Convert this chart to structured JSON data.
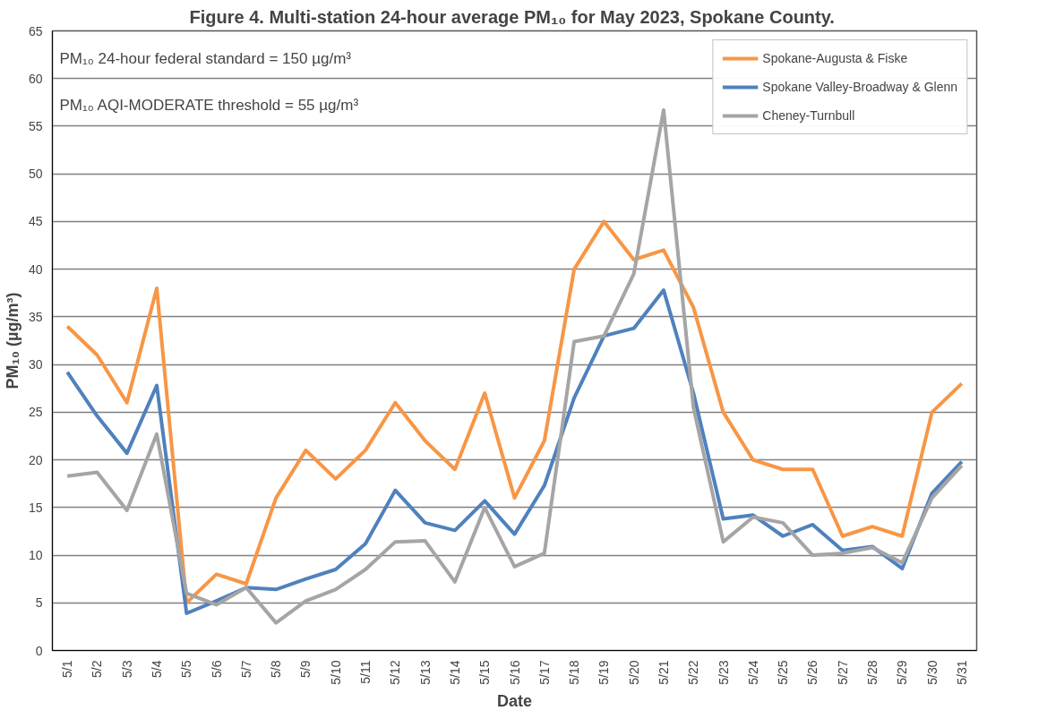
{
  "chart_data": {
    "type": "line",
    "title": "Figure 4.  Multi-station 24-hour average PM₁₀ for May 2023, Spokane County.",
    "xlabel": "Date",
    "ylabel": "PM₁₀ (µg/m³)",
    "categories": [
      "5/1",
      "5/2",
      "5/3",
      "5/4",
      "5/5",
      "5/6",
      "5/7",
      "5/8",
      "5/9",
      "5/10",
      "5/11",
      "5/12",
      "5/13",
      "5/14",
      "5/15",
      "5/16",
      "5/17",
      "5/18",
      "5/19",
      "5/20",
      "5/21",
      "5/22",
      "5/23",
      "5/24",
      "5/25",
      "5/26",
      "5/27",
      "5/28",
      "5/29",
      "5/30",
      "5/31"
    ],
    "series": [
      {
        "name": "Spokane-Augusta & Fiske",
        "color": "#f79646",
        "values": [
          34,
          31,
          26,
          38,
          5,
          8,
          7,
          16,
          21,
          18,
          21,
          26,
          22,
          19,
          27,
          16,
          22,
          40,
          45,
          41,
          42,
          36,
          25,
          20,
          19,
          19,
          12,
          13,
          12,
          25,
          28
        ]
      },
      {
        "name": "Spokane Valley-Broadway & Glenn",
        "color": "#4f81bd",
        "values": [
          29.2,
          24.6,
          20.7,
          27.8,
          3.9,
          5.2,
          6.6,
          6.4,
          7.5,
          8.5,
          11.2,
          16.8,
          13.4,
          12.6,
          15.7,
          12.2,
          17.3,
          26.5,
          33,
          33.8,
          37.8,
          27,
          13.8,
          14.2,
          12,
          13.2,
          10.5,
          10.9,
          8.6,
          16.5,
          19.8
        ]
      },
      {
        "name": "Cheney-Turnbull",
        "color": "#a5a5a5",
        "values": [
          18.3,
          18.7,
          14.7,
          22.7,
          6,
          4.8,
          6.6,
          2.9,
          5.2,
          6.4,
          8.5,
          11.4,
          11.5,
          7.2,
          15,
          8.8,
          10.2,
          32.4,
          33,
          39.5,
          56.7,
          25.5,
          11.4,
          14,
          13.4,
          10,
          10.2,
          10.8,
          9.2,
          16,
          19.4
        ]
      }
    ],
    "annotations": [
      "PM₁₀ 24-hour federal standard = 150 µg/m³",
      "PM₁₀ AQI-MODERATE threshold = 55 µg/m³"
    ],
    "ylim": [
      0,
      65
    ],
    "yticks": [
      0,
      5,
      10,
      15,
      20,
      25,
      30,
      35,
      40,
      45,
      50,
      55,
      60,
      65
    ],
    "grid": "y",
    "legend": "top right",
    "marker": "none",
    "line_style": "solid"
  }
}
